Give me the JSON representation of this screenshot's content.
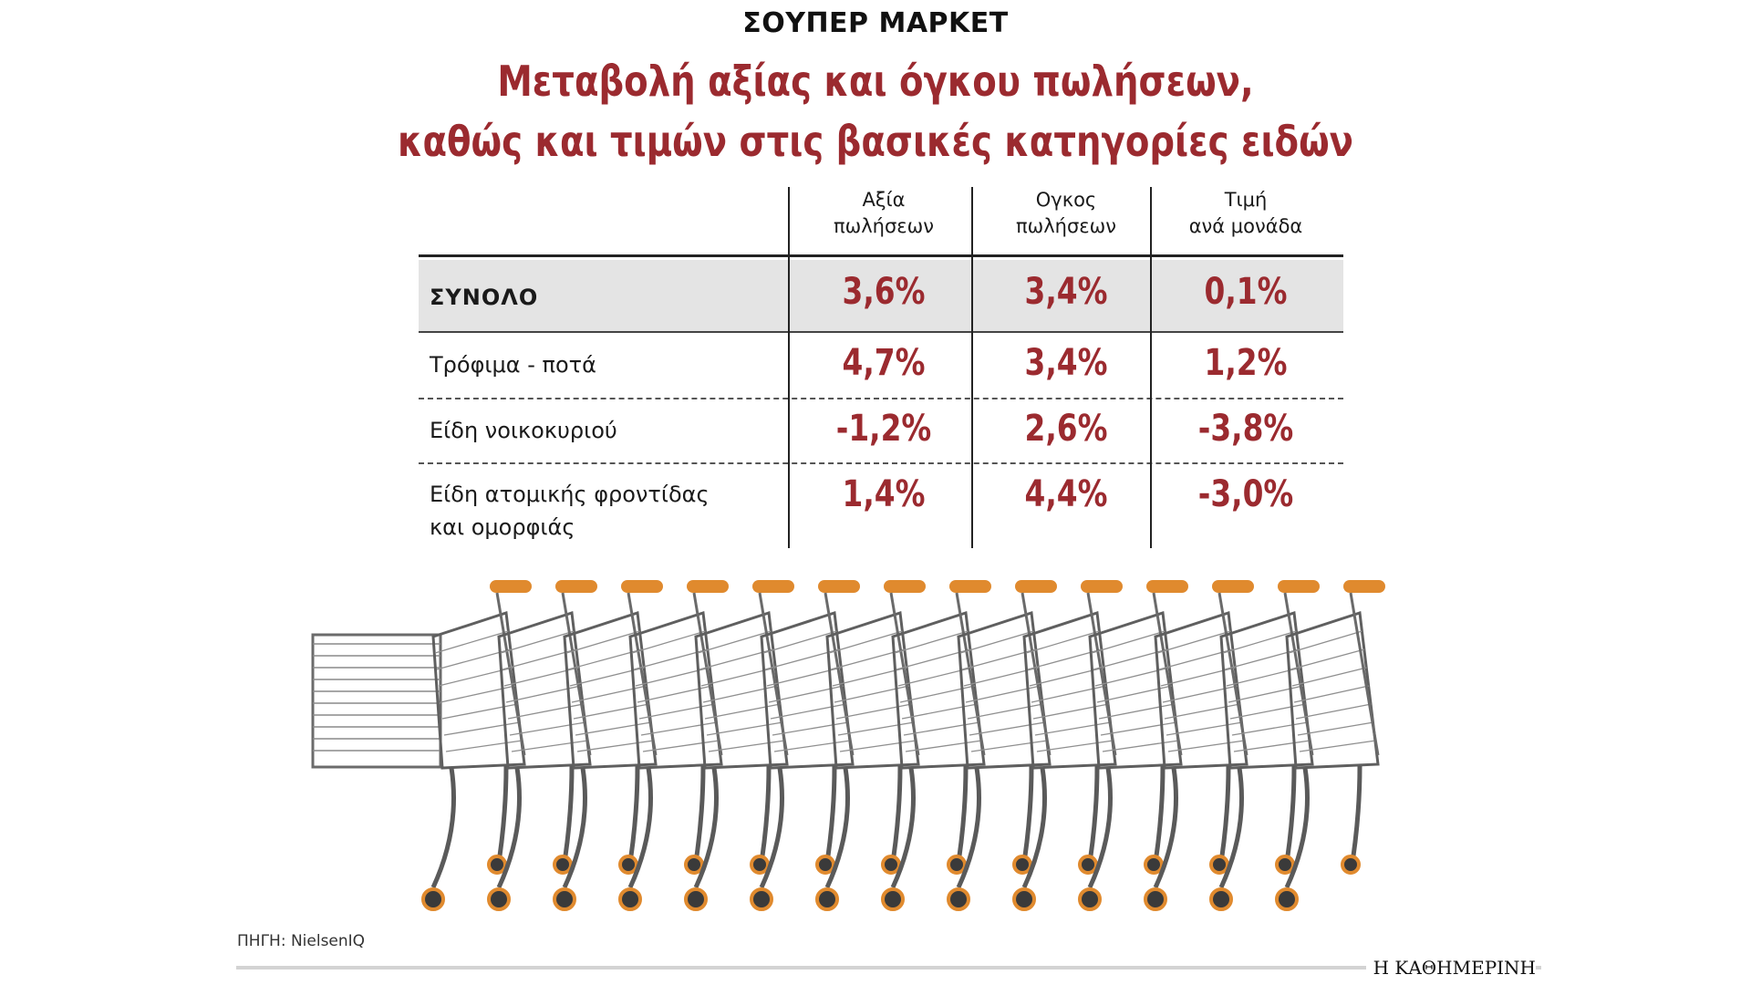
{
  "kicker": "ΣΟΥΠΕΡ ΜΑΡΚΕΤ",
  "title_line1": "Μεταβολή αξίας και όγκου πωλήσεων,",
  "title_line2": "καθώς και τιμών στις βασικές κατηγορίες ειδών",
  "source": "ΠΗΓΗ: NielsenIQ",
  "brand": "Η ΚΑΘΗΜΕΡΙΝΗ",
  "colors": {
    "accent": "#9b2a2f",
    "total_row_bg": "#e4e4e4",
    "cart_handle": "#e08a2e"
  },
  "chart_data": {
    "type": "table",
    "title": "Μεταβολή αξίας και όγκου πωλήσεων, καθώς και τιμών στις βασικές κατηγορίες ειδών",
    "columns": [
      {
        "line1": "Αξία",
        "line2": "πωλήσεων"
      },
      {
        "line1": "Ογκος",
        "line2": "πωλήσεων"
      },
      {
        "line1": "Τιμή",
        "line2": "ανά μονάδα"
      }
    ],
    "rows": [
      {
        "line1": "ΣΥΝΟΛΟ",
        "line2": "",
        "cells": [
          "3,6%",
          "3,4%",
          "0,1%"
        ],
        "values": [
          3.6,
          3.4,
          0.1
        ]
      },
      {
        "line1": "Τρόφιμα - ποτά",
        "line2": "",
        "cells": [
          "4,7%",
          "3,4%",
          "1,2%"
        ],
        "values": [
          4.7,
          3.4,
          1.2
        ]
      },
      {
        "line1": "Είδη νοικοκυριού",
        "line2": "",
        "cells": [
          "-1,2%",
          "2,6%",
          "-3,8%"
        ],
        "values": [
          -1.2,
          2.6,
          -3.8
        ]
      },
      {
        "line1": "Είδη ατομικής φροντίδας",
        "line2": "και ομορφιάς",
        "cells": [
          "1,4%",
          "4,4%",
          "-3,0%"
        ],
        "values": [
          1.4,
          4.4,
          -3.0
        ]
      }
    ]
  }
}
